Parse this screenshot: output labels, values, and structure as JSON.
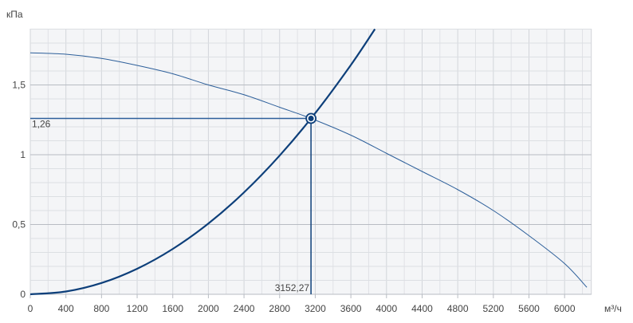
{
  "chart_data": {
    "type": "line",
    "ylabel": "кПа",
    "xlabel": "м³/ч",
    "xlim": [
      0,
      6300
    ],
    "ylim": [
      0,
      1.9
    ],
    "grid": true,
    "x_ticks": [
      0,
      400,
      800,
      1200,
      1600,
      2000,
      2400,
      2800,
      3200,
      3600,
      4000,
      4400,
      4800,
      5200,
      5600,
      6000
    ],
    "y_ticks": [
      {
        "value": 0,
        "label": "0"
      },
      {
        "value": 0.5,
        "label": "0,5"
      },
      {
        "value": 1,
        "label": "1"
      },
      {
        "value": 1.5,
        "label": "1,5"
      }
    ],
    "series": [
      {
        "role": "fan-curve",
        "color": "#2d5f9a",
        "x": [
          0,
          400,
          800,
          1200,
          1600,
          2000,
          2400,
          2800,
          3152.27,
          3600,
          4000,
          4400,
          4800,
          5200,
          5600,
          6000,
          6250
        ],
        "y": [
          1.73,
          1.72,
          1.69,
          1.64,
          1.58,
          1.5,
          1.43,
          1.34,
          1.26,
          1.14,
          1.01,
          0.88,
          0.75,
          0.6,
          0.42,
          0.22,
          0.05
        ]
      },
      {
        "role": "system-curve",
        "color": "#0d3f7a",
        "x": [
          0,
          400,
          800,
          1200,
          1600,
          2000,
          2400,
          2800,
          3200,
          3600,
          3870
        ],
        "y": [
          0,
          0.02,
          0.081,
          0.183,
          0.325,
          0.507,
          0.73,
          0.994,
          1.298,
          1.643,
          1.9
        ]
      }
    ],
    "operating_point": {
      "x": 3152.27,
      "y": 1.26,
      "x_label": "3152,27",
      "y_label": "1,26"
    }
  }
}
